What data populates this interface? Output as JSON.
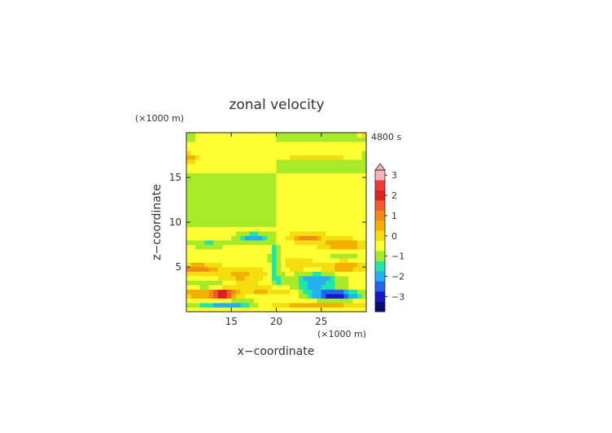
{
  "chart_data": {
    "type": "heatmap",
    "title": "zonal velocity",
    "time_label": "4800 s",
    "x": {
      "label": "x−coordinate",
      "unit_label": "(×1000 m)",
      "range": [
        10,
        30
      ],
      "ticks": [
        15,
        20,
        25
      ],
      "tick_labels": [
        "15",
        "20",
        "25"
      ]
    },
    "y": {
      "label": "z−coordinate",
      "unit_label": "(×1000 m)",
      "range": [
        0,
        20
      ],
      "ticks": [
        5,
        10,
        15
      ],
      "tick_labels": [
        "5",
        "10",
        "15"
      ]
    },
    "colorbar": {
      "tick_values": [
        3,
        2,
        1,
        0,
        -1,
        -2,
        -3
      ],
      "tick_labels": [
        "3",
        "2",
        "1",
        "0",
        "−1",
        "−2",
        "−3"
      ],
      "levels": [
        3.25,
        2.75,
        2.25,
        1.75,
        1.25,
        0.75,
        0.25,
        -0.25,
        -0.75,
        -1.25,
        -1.75,
        -2.25,
        -2.75,
        -3.25
      ],
      "colors": [
        "#f7b3b3",
        "#ee3a3a",
        "#e0201c",
        "#f55a2a",
        "#f28a1a",
        "#f2b000",
        "#f5de10",
        "#ffff33",
        "#a6ea28",
        "#22e6a8",
        "#22b0f0",
        "#2266f0",
        "#1818c8",
        "#0c0c70"
      ],
      "extend": "both"
    },
    "field": {
      "nx": 40,
      "ny": 40,
      "description": "approximate u-velocity contours on the x-z plane"
    }
  }
}
